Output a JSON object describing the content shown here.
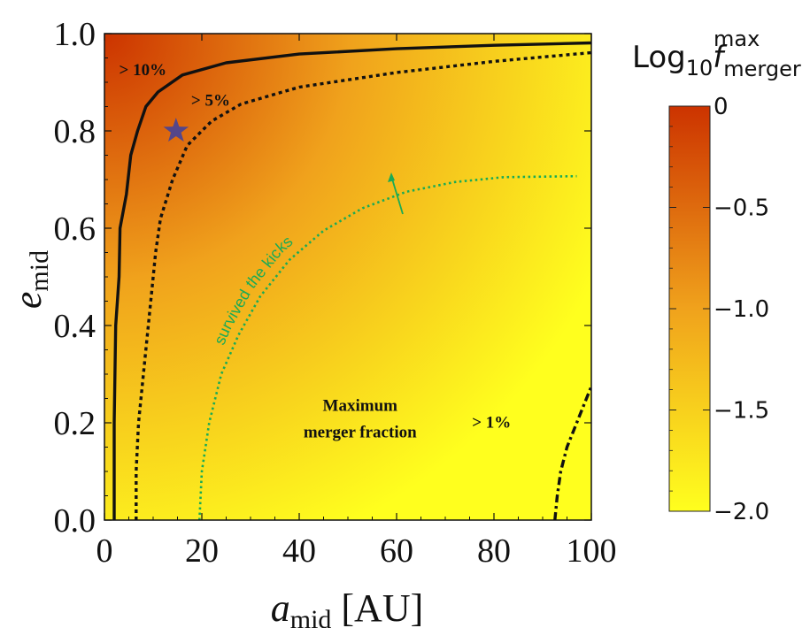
{
  "chart_data": {
    "type": "heatmap",
    "title": "",
    "xlabel": {
      "main": "a",
      "sub": "mid",
      "unit": " [AU]"
    },
    "ylabel": {
      "main": "e",
      "sub": "mid"
    },
    "xlim": [
      0,
      100
    ],
    "ylim": [
      0,
      1
    ],
    "xticks": [
      {
        "value": 0,
        "label": "0"
      },
      {
        "value": 20,
        "label": "20"
      },
      {
        "value": 40,
        "label": "40"
      },
      {
        "value": 60,
        "label": "60"
      },
      {
        "value": 80,
        "label": "80"
      },
      {
        "value": 100,
        "label": "100"
      }
    ],
    "yticks": [
      {
        "value": 0,
        "label": "0.0"
      },
      {
        "value": 0.2,
        "label": "0.2"
      },
      {
        "value": 0.4,
        "label": "0.4"
      },
      {
        "value": 0.6,
        "label": "0.6"
      },
      {
        "value": 0.8,
        "label": "0.8"
      },
      {
        "value": 1.0,
        "label": "1.0"
      }
    ],
    "colorbar": {
      "title": {
        "main": "Log",
        "sub": "10",
        "var": "f",
        "sup": "max",
        "varsub": "merger"
      },
      "range": [
        -2.0,
        0
      ],
      "ticks": [
        {
          "value": 0,
          "label": "0"
        },
        {
          "value": -0.5,
          "label": "−0.5"
        },
        {
          "value": -1.0,
          "label": "−1.0"
        },
        {
          "value": -1.5,
          "label": "−1.5"
        },
        {
          "value": -2.0,
          "label": "−2.0"
        }
      ],
      "colors": [
        "#ffff1e",
        "#f0a21c",
        "#cc3300"
      ]
    },
    "contours": [
      {
        "label": "> 10%",
        "style": "solid",
        "points": [
          [
            2,
            0
          ],
          [
            2,
            0.2
          ],
          [
            2.3,
            0.4
          ],
          [
            3,
            0.5
          ],
          [
            3.2,
            0.6
          ],
          [
            4.5,
            0.67
          ],
          [
            5.4,
            0.75
          ],
          [
            6.8,
            0.8
          ],
          [
            8.5,
            0.85
          ],
          [
            11,
            0.88
          ],
          [
            16,
            0.915
          ],
          [
            25,
            0.94
          ],
          [
            40,
            0.958
          ],
          [
            60,
            0.969
          ],
          [
            80,
            0.976
          ],
          [
            100,
            0.981
          ]
        ]
      },
      {
        "label": "> 5%",
        "style": "dotted",
        "points": [
          [
            6.5,
            0
          ],
          [
            6.5,
            0.1
          ],
          [
            7,
            0.2
          ],
          [
            8,
            0.3
          ],
          [
            9.5,
            0.45
          ],
          [
            10.5,
            0.55
          ],
          [
            11.5,
            0.62
          ],
          [
            14,
            0.7
          ],
          [
            17,
            0.77
          ],
          [
            22,
            0.82
          ],
          [
            28,
            0.855
          ],
          [
            40,
            0.89
          ],
          [
            60,
            0.92
          ],
          [
            80,
            0.943
          ],
          [
            100,
            0.961
          ]
        ]
      },
      {
        "label": "> 1%",
        "style": "dashdot",
        "points": [
          [
            92.5,
            0
          ],
          [
            93,
            0.05
          ],
          [
            93.7,
            0.1
          ],
          [
            95,
            0.15
          ],
          [
            97,
            0.2
          ],
          [
            99,
            0.25
          ],
          [
            100,
            0.275
          ]
        ]
      }
    ],
    "curve": {
      "label": "survived the kicks",
      "style": "dotted",
      "color": "#1aab55",
      "points": [
        [
          19.5,
          0
        ],
        [
          20,
          0.1
        ],
        [
          21.5,
          0.2
        ],
        [
          24,
          0.3
        ],
        [
          27.5,
          0.38
        ],
        [
          32,
          0.46
        ],
        [
          38,
          0.535
        ],
        [
          45,
          0.595
        ],
        [
          53,
          0.641
        ],
        [
          62,
          0.675
        ],
        [
          72,
          0.695
        ],
        [
          82,
          0.705
        ],
        [
          97,
          0.707
        ]
      ]
    },
    "marker": {
      "shape": "star",
      "color": "#55468a",
      "x": 14.7,
      "y": 0.8
    },
    "annotations": [
      {
        "text": "> 10%",
        "x": 3,
        "y": 0.915
      },
      {
        "text": "> 5%",
        "x": 17.8,
        "y": 0.852
      },
      {
        "text": "Maximum",
        "x": 52.5,
        "y": 0.225,
        "anchor": "middle"
      },
      {
        "text": "merger fraction",
        "x": 52.5,
        "y": 0.17,
        "anchor": "middle"
      },
      {
        "text": "> 1%",
        "x": 79.5,
        "y": 0.19,
        "anchor": "middle"
      }
    ]
  }
}
